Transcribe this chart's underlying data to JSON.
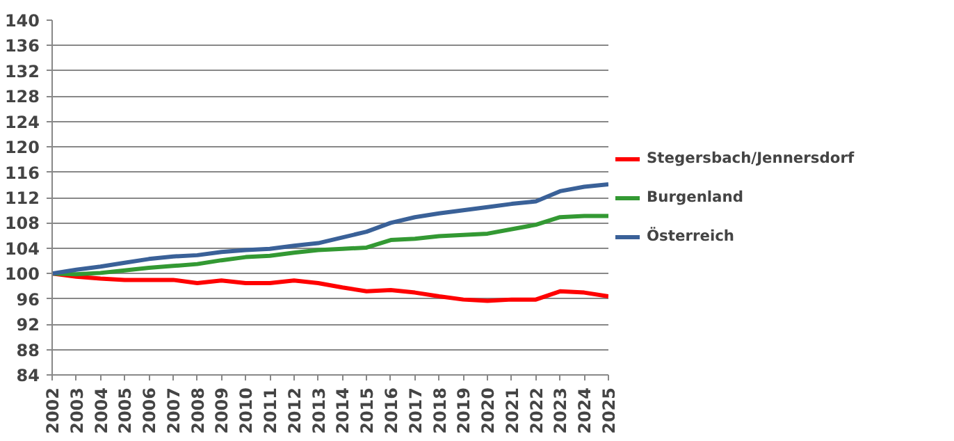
{
  "chart_data": {
    "type": "line",
    "categories": [
      "2002",
      "2003",
      "2004",
      "2005",
      "2006",
      "2007",
      "2008",
      "2009",
      "2010",
      "2011",
      "2012",
      "2013",
      "2014",
      "2015",
      "2016",
      "2017",
      "2018",
      "2019",
      "2020",
      "2021",
      "2022",
      "2023",
      "2024",
      "2025"
    ],
    "series": [
      {
        "name": "Stegersbach/Jennersdorf",
        "color": "#ff0000",
        "values": [
          100,
          99.5,
          99.2,
          99.0,
          99.0,
          99.0,
          98.5,
          98.9,
          98.5,
          98.5,
          98.9,
          98.5,
          97.8,
          97.2,
          97.4,
          97.0,
          96.4,
          95.9,
          95.7,
          95.9,
          95.9,
          97.2,
          97.0,
          96.4
        ]
      },
      {
        "name": "Burgenland",
        "color": "#339933",
        "values": [
          100,
          99.9,
          100.1,
          100.5,
          100.9,
          101.2,
          101.5,
          102.1,
          102.6,
          102.8,
          103.3,
          103.7,
          103.9,
          104.1,
          105.3,
          105.5,
          105.9,
          106.1,
          106.3,
          107.0,
          107.7,
          108.9,
          109.1,
          109.1
        ]
      },
      {
        "name": "Österreich",
        "color": "#3a6198",
        "values": [
          100,
          100.6,
          101.1,
          101.7,
          102.3,
          102.7,
          102.9,
          103.4,
          103.7,
          103.9,
          104.4,
          104.8,
          105.7,
          106.6,
          108.0,
          108.9,
          109.5,
          110.0,
          110.5,
          111.0,
          111.4,
          113.0,
          113.7,
          114.1
        ]
      }
    ],
    "ylim": [
      84,
      140
    ],
    "yticks": [
      84,
      88,
      92,
      96,
      100,
      104,
      108,
      112,
      116,
      120,
      124,
      128,
      132,
      136,
      140
    ],
    "grid": "y",
    "legend": "right",
    "marker": "none",
    "line_style": "solid"
  }
}
